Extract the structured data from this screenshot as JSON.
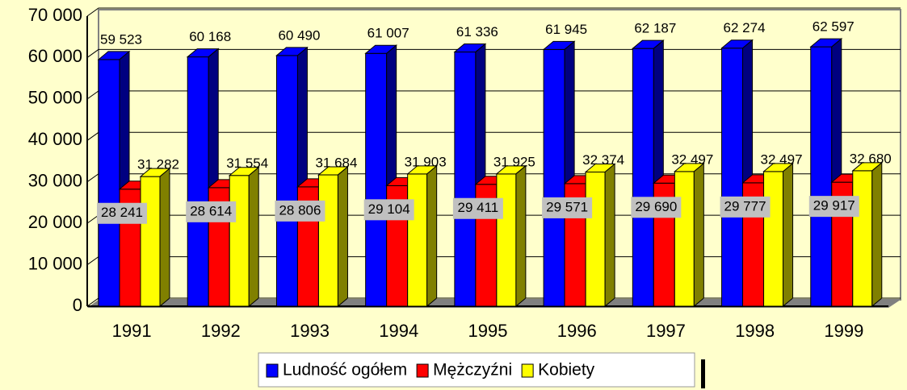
{
  "chart_data": {
    "type": "bar3d",
    "categories": [
      "1991",
      "1992",
      "1993",
      "1994",
      "1995",
      "1996",
      "1997",
      "1998",
      "1999"
    ],
    "series": [
      {
        "name": "Ludność ogółem",
        "color": "#0000ff",
        "side": "#000080",
        "values": [
          59523,
          60168,
          60490,
          61007,
          61336,
          61945,
          62187,
          62274,
          62597
        ],
        "value_labels": [
          "59 523",
          "60 168",
          "60 490",
          "61 007",
          "61 336",
          "61 945",
          "62 187",
          "62 274",
          "62 597"
        ]
      },
      {
        "name": "Mężczyźni",
        "color": "#ff0000",
        "side": "#800000",
        "values": [
          28241,
          28614,
          28806,
          29104,
          29411,
          29571,
          29690,
          29777,
          29917
        ],
        "value_labels": [
          "28 241",
          "28 614",
          "28 806",
          "29 104",
          "29 411",
          "29 571",
          "29 690",
          "29 777",
          "29 917"
        ]
      },
      {
        "name": "Kobiety",
        "color": "#ffff00",
        "side": "#808000",
        "values": [
          31282,
          31554,
          31684,
          31903,
          31925,
          32374,
          32497,
          32497,
          32680
        ],
        "value_labels": [
          "31 282",
          "31 554",
          "31 684",
          "31 903",
          "31 925",
          "32 374",
          "32 497",
          "32 497",
          "32 680"
        ]
      }
    ],
    "ylim": [
      0,
      70000
    ],
    "yticks": [
      0,
      {
        "value": 10000,
        "label": "10 000"
      },
      {
        "value": 20000,
        "label": "20 000"
      },
      {
        "value": 30000,
        "label": "30 000"
      },
      {
        "value": 40000,
        "label": "40 000"
      },
      {
        "value": 50000,
        "label": "50 000"
      },
      {
        "value": 60000,
        "label": "60 000"
      },
      {
        "value": 70000,
        "label": "70 000"
      }
    ],
    "grid": true,
    "legend": "bottom"
  }
}
